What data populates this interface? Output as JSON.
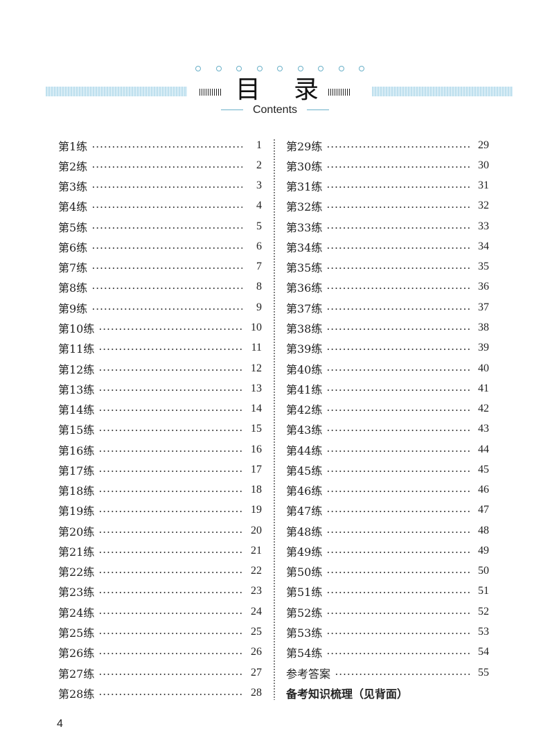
{
  "header": {
    "title_chars": [
      "目",
      "录"
    ],
    "subtitle": "Contents",
    "accent_color": "#6ab0c8"
  },
  "left_entries": [
    {
      "label": "第1练",
      "page": "1"
    },
    {
      "label": "第2练",
      "page": "2"
    },
    {
      "label": "第3练",
      "page": "3"
    },
    {
      "label": "第4练",
      "page": "4"
    },
    {
      "label": "第5练",
      "page": "5"
    },
    {
      "label": "第6练",
      "page": "6"
    },
    {
      "label": "第7练",
      "page": "7"
    },
    {
      "label": "第8练",
      "page": "8"
    },
    {
      "label": "第9练",
      "page": "9"
    },
    {
      "label": "第10练",
      "page": "10"
    },
    {
      "label": "第11练",
      "page": "11"
    },
    {
      "label": "第12练",
      "page": "12"
    },
    {
      "label": "第13练",
      "page": "13"
    },
    {
      "label": "第14练",
      "page": "14"
    },
    {
      "label": "第15练",
      "page": "15"
    },
    {
      "label": "第16练",
      "page": "16"
    },
    {
      "label": "第17练",
      "page": "17"
    },
    {
      "label": "第18练",
      "page": "18"
    },
    {
      "label": "第19练",
      "page": "19"
    },
    {
      "label": "第20练",
      "page": "20"
    },
    {
      "label": "第21练",
      "page": "21"
    },
    {
      "label": "第22练",
      "page": "22"
    },
    {
      "label": "第23练",
      "page": "23"
    },
    {
      "label": "第24练",
      "page": "24"
    },
    {
      "label": "第25练",
      "page": "25"
    },
    {
      "label": "第26练",
      "page": "26"
    },
    {
      "label": "第27练",
      "page": "27"
    },
    {
      "label": "第28练",
      "page": "28"
    }
  ],
  "right_entries": [
    {
      "label": "第29练",
      "page": "29"
    },
    {
      "label": "第30练",
      "page": "30"
    },
    {
      "label": "第31练",
      "page": "31"
    },
    {
      "label": "第32练",
      "page": "32"
    },
    {
      "label": "第33练",
      "page": "33"
    },
    {
      "label": "第34练",
      "page": "34"
    },
    {
      "label": "第35练",
      "page": "35"
    },
    {
      "label": "第36练",
      "page": "36"
    },
    {
      "label": "第37练",
      "page": "37"
    },
    {
      "label": "第38练",
      "page": "38"
    },
    {
      "label": "第39练",
      "page": "39"
    },
    {
      "label": "第40练",
      "page": "40"
    },
    {
      "label": "第41练",
      "page": "41"
    },
    {
      "label": "第42练",
      "page": "42"
    },
    {
      "label": "第43练",
      "page": "43"
    },
    {
      "label": "第44练",
      "page": "44"
    },
    {
      "label": "第45练",
      "page": "45"
    },
    {
      "label": "第46练",
      "page": "46"
    },
    {
      "label": "第47练",
      "page": "47"
    },
    {
      "label": "第48练",
      "page": "48"
    },
    {
      "label": "第49练",
      "page": "49"
    },
    {
      "label": "第50练",
      "page": "50"
    },
    {
      "label": "第51练",
      "page": "51"
    },
    {
      "label": "第52练",
      "page": "52"
    },
    {
      "label": "第53练",
      "page": "53"
    },
    {
      "label": "第54练",
      "page": "54"
    },
    {
      "label": "参考答案",
      "page": "55"
    }
  ],
  "footer_note": "备考知识梳理（见背面）",
  "page_number": "4"
}
